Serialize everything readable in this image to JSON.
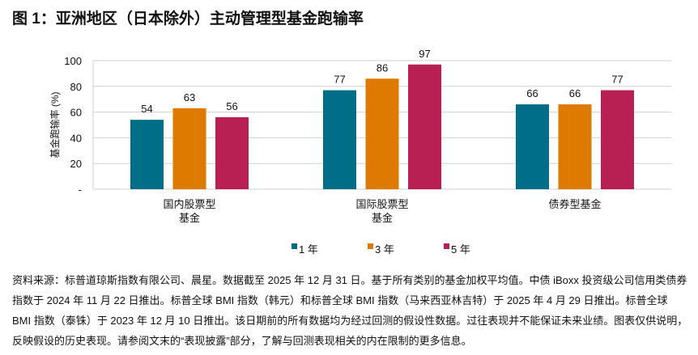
{
  "title": "图 1：亚洲地区（日本除外）主动管理型基金跑输率",
  "chart_data": {
    "type": "bar",
    "ylabel": "基金跑输率 (%)",
    "ylim": [
      0,
      100
    ],
    "yticks": [
      "-",
      "20",
      "40",
      "60",
      "80",
      "100"
    ],
    "grid": true,
    "legend_position": "bottom",
    "categories": [
      [
        "国内股票型",
        "基金"
      ],
      [
        "国际股票型",
        "基金"
      ],
      [
        "债券型基金"
      ]
    ],
    "series": [
      {
        "name": "1 年",
        "color": "#006e87",
        "values": [
          54,
          77,
          66
        ]
      },
      {
        "name": "3 年",
        "color": "#df7a00",
        "values": [
          63,
          86,
          66
        ]
      },
      {
        "name": "5 年",
        "color": "#b81f52",
        "values": [
          56,
          97,
          77
        ]
      }
    ]
  },
  "footnote": "资料来源：标普道琼斯指数有限公司、晨星。数据截至 2025 年 12 月 31 日。基于所有类别的基金加权平均值。中债 iBoxx 投资级公司信用类债券指数于 2024 年 11 月 22 日推出。标普全球 BMI 指数（韩元）和标普全球 BMI 指数（马来西亚林吉特）于 2025 年 4 月 29 日推出。标普全球 BMI 指数（泰铢）于 2023 年 12 月 10 日推出。该日期前的所有数据均为经过回测的假设性数据。过往表现并不能保证未来业绩。图表仅供说明，反映假设的历史表现。请参阅文末的“表现披露”部分，了解与回测表现相关的内在限制的更多信息。"
}
